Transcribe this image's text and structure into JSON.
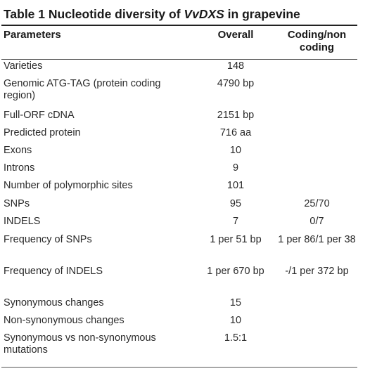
{
  "caption": {
    "prefix": "Table 1 Nucleotide diversity of ",
    "gene": "VvDXS",
    "suffix": " in grapevine"
  },
  "table": {
    "headers": [
      "Parameters",
      "Overall",
      "Coding/non coding"
    ],
    "rows": [
      [
        "Varieties",
        "148",
        ""
      ],
      [
        "Genomic ATG-TAG (protein coding region)",
        "4790 bp",
        ""
      ],
      [
        "Full-ORF cDNA",
        "2151 bp",
        ""
      ],
      [
        "Predicted protein",
        "716 aa",
        ""
      ],
      [
        "Exons",
        "10",
        ""
      ],
      [
        "Introns",
        "9",
        ""
      ],
      [
        "Number of polymorphic sites",
        "101",
        ""
      ],
      [
        "SNPs",
        "95",
        "25/70"
      ],
      [
        "INDELS",
        "7",
        "0/7"
      ],
      [
        "Frequency of SNPs",
        "1 per 51 bp",
        "1 per 86/1 per 38"
      ],
      [
        "Frequency of INDELS",
        "1 per 670 bp",
        "-/1 per 372 bp"
      ],
      [
        "Synonymous changes",
        "15",
        ""
      ],
      [
        "Non-synonymous changes",
        "10",
        ""
      ],
      [
        "Synonymous vs non-synonymous mutations",
        "1.5:1",
        ""
      ]
    ]
  }
}
